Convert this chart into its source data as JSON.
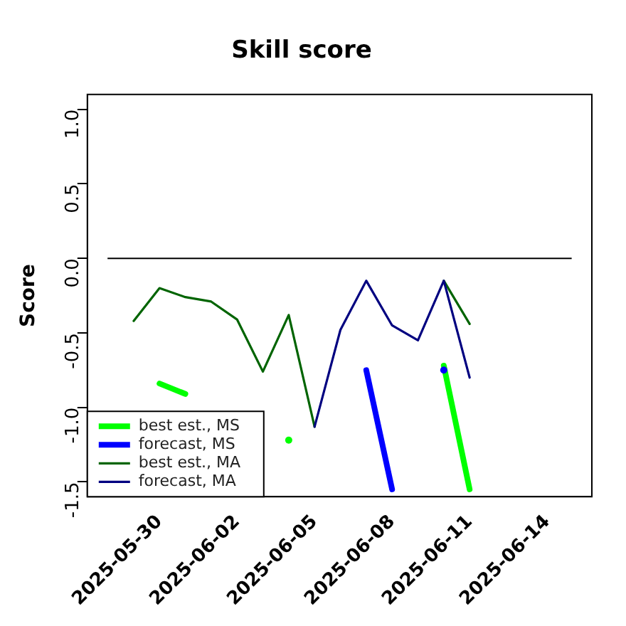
{
  "chart_data": {
    "type": "line",
    "title": "Skill score",
    "ylabel": "Score",
    "x": [
      "2025-05-29",
      "2025-05-30",
      "2025-05-31",
      "2025-06-01",
      "2025-06-02",
      "2025-06-03",
      "2025-06-04",
      "2025-06-05",
      "2025-06-06",
      "2025-06-07",
      "2025-06-08",
      "2025-06-09",
      "2025-06-10",
      "2025-06-11"
    ],
    "series": [
      {
        "name": "best est., MS",
        "color": "#00ff00",
        "values": [
          null,
          -0.84,
          -0.91,
          null,
          null,
          null,
          -1.22,
          null,
          null,
          null,
          null,
          null,
          -0.72,
          -1.55
        ]
      },
      {
        "name": "forecast, MS",
        "color": "#0000ff",
        "values": [
          null,
          null,
          null,
          null,
          null,
          null,
          null,
          null,
          null,
          -0.75,
          -1.55,
          null,
          -0.75,
          null
        ]
      },
      {
        "name": "best est., MA",
        "color": "#006400",
        "values": [
          -0.42,
          -0.2,
          -0.26,
          -0.29,
          -0.41,
          -0.76,
          -0.38,
          -1.13,
          null,
          null,
          null,
          null,
          -0.15,
          -0.44
        ]
      },
      {
        "name": "forecast, MA",
        "color": "#000080",
        "values": [
          null,
          null,
          null,
          null,
          null,
          null,
          null,
          -1.13,
          -0.48,
          -0.15,
          -0.45,
          -0.55,
          -0.15,
          -0.8
        ]
      }
    ],
    "xlim": [
      "2025-05-27T05:00",
      "2025-06-15T17:30"
    ],
    "xticks": [
      "2025-05-30",
      "2025-06-02",
      "2025-06-05",
      "2025-06-08",
      "2025-06-11",
      "2025-06-14"
    ],
    "ylim": [
      -1.6,
      1.1
    ],
    "yticks": [
      -1.5,
      {
        "value": -1,
        "label": "-1.0"
      },
      -0.5,
      {
        "value": 0,
        "label": "0.0"
      },
      0.5,
      {
        "value": 1,
        "label": "1.0"
      }
    ],
    "ref_lines": [
      {
        "axis": "y",
        "value": 0,
        "color": "#000000"
      }
    ],
    "legend": "bottom left",
    "grid": false,
    "marker": "none",
    "line_style": "solid"
  }
}
